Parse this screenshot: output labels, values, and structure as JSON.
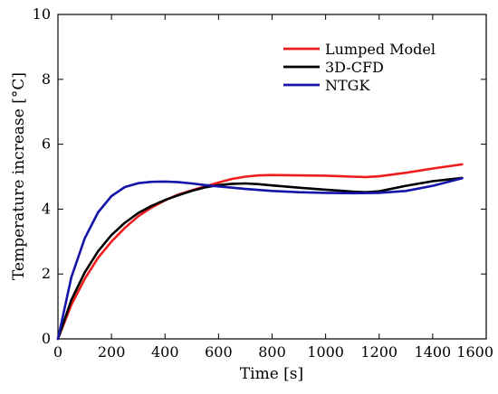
{
  "chart_data": {
    "type": "line",
    "xlabel": "Time [s]",
    "ylabel": "Temperature increase [°C]",
    "xlim": [
      0,
      1600
    ],
    "ylim": [
      0,
      10
    ],
    "xticks": [
      0,
      200,
      400,
      600,
      800,
      1000,
      1200,
      1400,
      1600
    ],
    "yticks": [
      0,
      2,
      4,
      6,
      8,
      10
    ],
    "grid": false,
    "legend_position": "top-right",
    "series": [
      {
        "name": "Lumped Model",
        "color": "#ee1c1c",
        "x": [
          0,
          50,
          100,
          150,
          200,
          250,
          300,
          350,
          400,
          450,
          500,
          550,
          600,
          650,
          700,
          750,
          800,
          900,
          1000,
          1100,
          1150,
          1200,
          1300,
          1400,
          1510
        ],
        "y": [
          0,
          1.05,
          1.85,
          2.5,
          3.0,
          3.42,
          3.78,
          4.05,
          4.27,
          4.45,
          4.58,
          4.7,
          4.82,
          4.93,
          5.0,
          5.04,
          5.05,
          5.04,
          5.03,
          5.0,
          4.99,
          5.01,
          5.12,
          5.25,
          5.38
        ]
      },
      {
        "name": "3D-CFD",
        "color": "#000000",
        "x": [
          0,
          50,
          100,
          150,
          200,
          250,
          300,
          350,
          400,
          450,
          500,
          550,
          600,
          650,
          700,
          750,
          800,
          900,
          1000,
          1100,
          1150,
          1200,
          1300,
          1400,
          1510
        ],
        "y": [
          0,
          1.2,
          2.05,
          2.7,
          3.2,
          3.58,
          3.88,
          4.1,
          4.28,
          4.43,
          4.56,
          4.67,
          4.74,
          4.78,
          4.79,
          4.77,
          4.73,
          4.66,
          4.6,
          4.54,
          4.52,
          4.55,
          4.72,
          4.86,
          4.96
        ]
      },
      {
        "name": "NTGK",
        "color": "#1414a8",
        "x": [
          0,
          50,
          100,
          150,
          200,
          250,
          300,
          350,
          400,
          450,
          500,
          550,
          600,
          650,
          700,
          750,
          800,
          900,
          1000,
          1100,
          1200,
          1300,
          1400,
          1510
        ],
        "y": [
          0,
          1.9,
          3.1,
          3.9,
          4.4,
          4.68,
          4.8,
          4.84,
          4.85,
          4.83,
          4.79,
          4.74,
          4.7,
          4.66,
          4.62,
          4.59,
          4.56,
          4.52,
          4.5,
          4.49,
          4.5,
          4.56,
          4.72,
          4.95
        ]
      }
    ]
  }
}
